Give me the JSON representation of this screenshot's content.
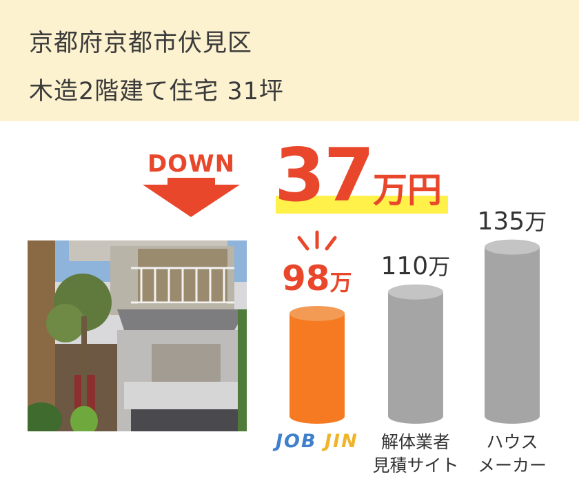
{
  "header": {
    "line1": "京都府京都市伏見区",
    "line2": "木造2階建て住宅 31坪"
  },
  "badge": {
    "down_label": "DOWN",
    "savings_value": "37",
    "savings_unit": "万円"
  },
  "colors": {
    "accent": "#e8472b",
    "highlight": "#fff04a",
    "header_bg": "#fcf2cf",
    "bar_primary": "#f57a22",
    "bar_secondary": "#a5a5a5"
  },
  "photo": {
    "icon": "house-photo"
  },
  "chart_data": {
    "type": "bar",
    "categories": [
      "JOB JIN",
      "解体業者見積サイト",
      "ハウスメーカー"
    ],
    "values": [
      98,
      110,
      135
    ],
    "unit": "万",
    "value_labels": [
      "98",
      "110",
      "135"
    ],
    "category_labels": [
      {
        "lines": [],
        "logo": "JOB JIN"
      },
      {
        "lines": [
          "解体業者",
          "見積サイト"
        ]
      },
      {
        "lines": [
          "ハウス",
          "メーカー"
        ]
      }
    ],
    "highlight_index": 0
  }
}
